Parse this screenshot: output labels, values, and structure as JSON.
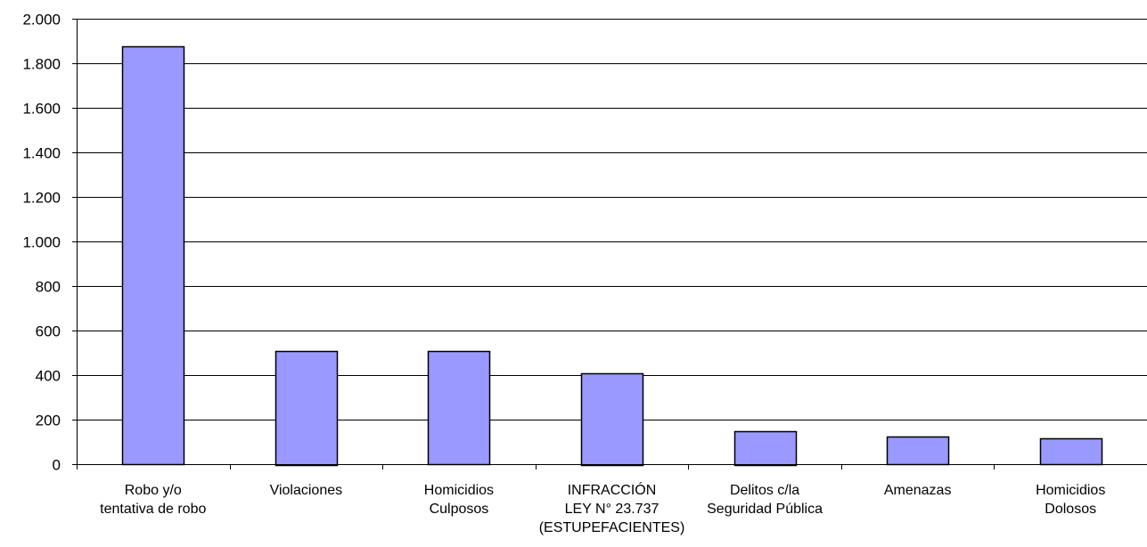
{
  "chart_data": {
    "type": "bar",
    "title": "",
    "xlabel": "",
    "ylabel": "",
    "categories": [
      [
        "Robo y/o",
        "tentativa de robo"
      ],
      [
        "Violaciones"
      ],
      [
        "Homicidios",
        "Culposos"
      ],
      [
        "INFRACCIÓN",
        "LEY N° 23.737",
        "(ESTUPEFACIENTES)"
      ],
      [
        "Delitos c/la",
        "Seguridad Pública"
      ],
      [
        "Amenazas"
      ],
      [
        "Homicidios",
        "Dolosos"
      ]
    ],
    "values": [
      1875,
      510,
      508,
      410,
      150,
      125,
      115
    ],
    "ylim": [
      0,
      2000
    ],
    "yticks": [
      0,
      200,
      400,
      600,
      800,
      1000,
      1200,
      1400,
      1600,
      1800,
      2000
    ],
    "ytick_labels": [
      "0",
      "200",
      "400",
      "600",
      "800",
      "1.000",
      "1.200",
      "1.400",
      "1.600",
      "1.800",
      "2.000"
    ],
    "grid": true,
    "legend": "none",
    "colors": {
      "bar_fill": "#9999ff",
      "bar_stroke": "#000000",
      "grid": "#000000",
      "axis": "#000000"
    }
  }
}
